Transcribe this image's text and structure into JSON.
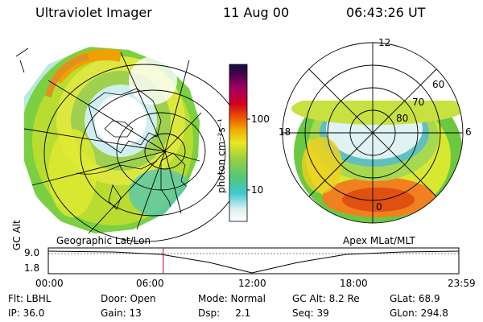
{
  "header": {
    "instrument": "Ultraviolet Imager",
    "date": "11 Aug 00",
    "time": "06:43:26 UT"
  },
  "colorbar": {
    "unit_label": "photon cm⁻²s⁻¹",
    "tick_100": "100",
    "tick_10": "10",
    "colors": [
      "#ffffff",
      "#d8f0f0",
      "#40c8d0",
      "#50c878",
      "#9ad040",
      "#e8e820",
      "#f0b000",
      "#f06000",
      "#d00020",
      "#a00060",
      "#500050",
      "#101040"
    ]
  },
  "left_map": {
    "label": "Geographic Lat/Lon"
  },
  "right_map": {
    "label": "Apex MLat/MLT",
    "mlt_12": "12",
    "mlt_18": "18",
    "mlt_6": "6",
    "mlt_0": "0",
    "lat_60": "60",
    "lat_70": "70",
    "lat_80": "80"
  },
  "altitude_plot": {
    "ylabel": "GC Alt",
    "ymax": "9.0",
    "ymin": "1.8",
    "x_ticks": [
      "00:00",
      "06:00",
      "12:00",
      "18:00",
      "23:59"
    ],
    "marker_time_hours": 6.72
  },
  "info": {
    "flt": "Flt: LBHL",
    "door": "Door: Open",
    "mode": "Mode: Normal",
    "gc_alt": "GC Alt: 8.2 Re",
    "glat": "GLat:  68.9",
    "ip": "IP: 36.0",
    "gain": "Gain: 13",
    "dsp": "Dsp:     2.1",
    "seq": "Seq: 39",
    "glon": "GLon: 294.8"
  }
}
